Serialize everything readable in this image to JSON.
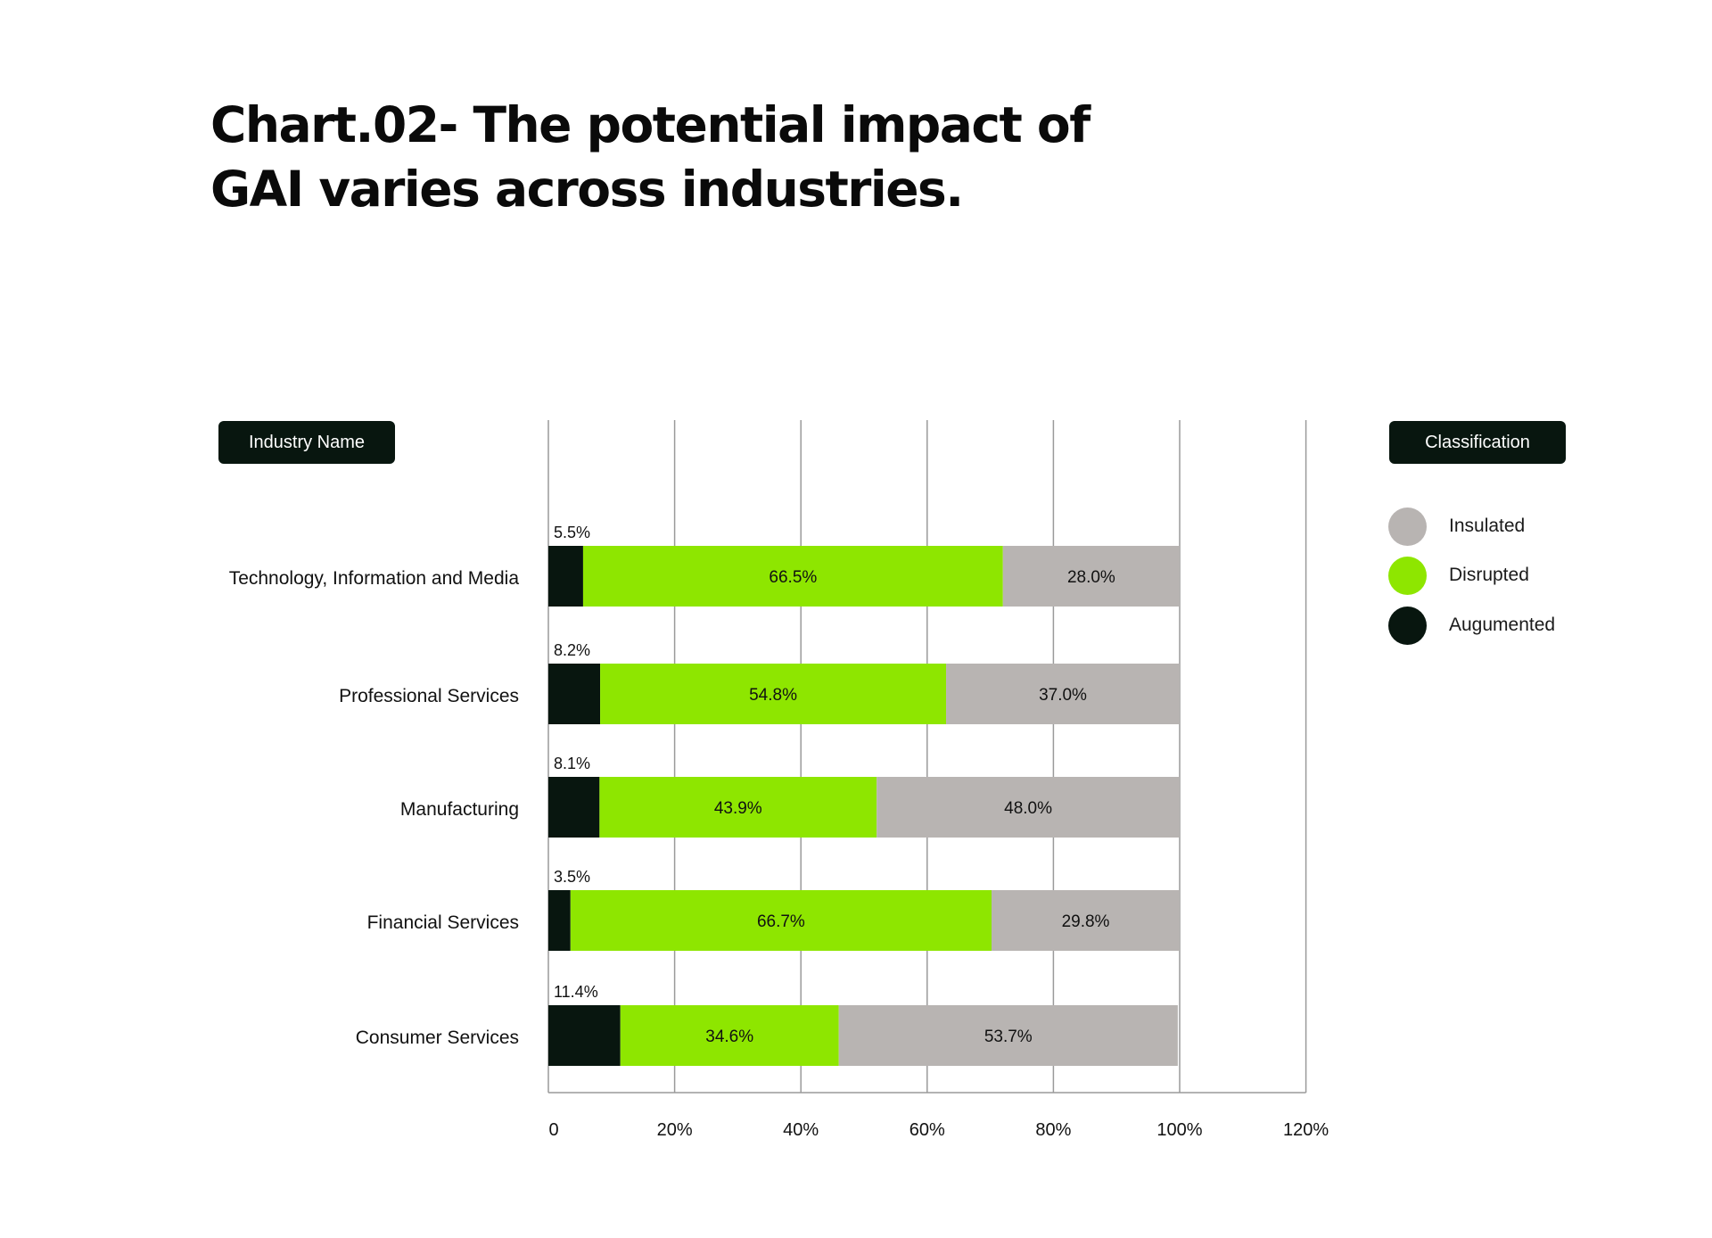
{
  "title": "Chart.02- The potential impact of GAI varies across industries.",
  "industry_header": "Industry Name",
  "legend_header": "Classification",
  "colors": {
    "Insulated": "#b8b4b2",
    "Disrupted": "#8ee600",
    "Augumented": "#08160f"
  },
  "legend": [
    "Insulated",
    "Disrupted",
    "Augumented"
  ],
  "chart_data": {
    "type": "bar",
    "orientation": "horizontal",
    "stacked": true,
    "title": "Chart.02- The potential impact of GAI varies across industries.",
    "categories": [
      "Technology, Information and Media",
      "Professional Services",
      "Manufacturing",
      "Financial Services",
      "Consumer Services"
    ],
    "series": [
      {
        "name": "Augumented",
        "values": [
          5.5,
          8.2,
          8.1,
          3.5,
          11.4
        ],
        "labels": [
          "5.5%",
          "8.2%",
          "8.1%",
          "3.5%",
          "11.4%"
        ]
      },
      {
        "name": "Disrupted",
        "values": [
          66.5,
          54.8,
          43.9,
          66.7,
          34.6
        ],
        "labels": [
          "66.5%",
          "54.8%",
          "43.9%",
          "66.7%",
          "34.6%"
        ]
      },
      {
        "name": "Insulated",
        "values": [
          28.0,
          37.0,
          48.0,
          29.8,
          53.7
        ],
        "labels": [
          "28.0%",
          "37.0%",
          "48.0%",
          "29.8%",
          "53.7%"
        ]
      }
    ],
    "xlim": [
      0,
      120
    ],
    "xticks": [
      0,
      20,
      40,
      60,
      80,
      100,
      120
    ],
    "xtick_labels": [
      "0",
      "20%",
      "40%",
      "60%",
      "80%",
      "100%",
      "120%"
    ],
    "grid": true,
    "legend_position": "right"
  }
}
